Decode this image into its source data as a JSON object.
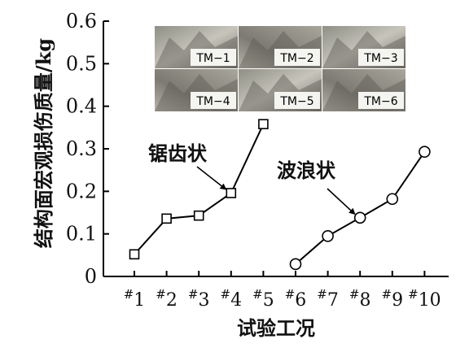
{
  "chart_data": {
    "type": "line",
    "ylabel": "结构面宏观损伤质量/kg",
    "xlabel": "试验工况",
    "ylim": [
      0,
      0.6
    ],
    "yticks": [
      "0",
      "0.1",
      "0.2",
      "0.3",
      "0.4",
      "0.5",
      "0.6"
    ],
    "categories": [
      "1",
      "2",
      "3",
      "4",
      "5",
      "6",
      "7",
      "8",
      "9",
      "10"
    ],
    "series": [
      {
        "name": "锯齿状",
        "marker": "square",
        "x": [
          "1",
          "2",
          "3",
          "4",
          "5"
        ],
        "values": [
          0.052,
          0.136,
          0.143,
          0.196,
          0.358
        ]
      },
      {
        "name": "波浪状",
        "marker": "circle",
        "x": [
          "6",
          "7",
          "8",
          "9",
          "10"
        ],
        "values": [
          0.029,
          0.095,
          0.138,
          0.182,
          0.293
        ]
      }
    ],
    "photos": [
      "TM−1",
      "TM−2",
      "TM−3",
      "TM−4",
      "TM−5",
      "TM−6"
    ],
    "grid": false,
    "colors": {
      "line": "#000000",
      "marker_fill": "#ffffff"
    }
  }
}
